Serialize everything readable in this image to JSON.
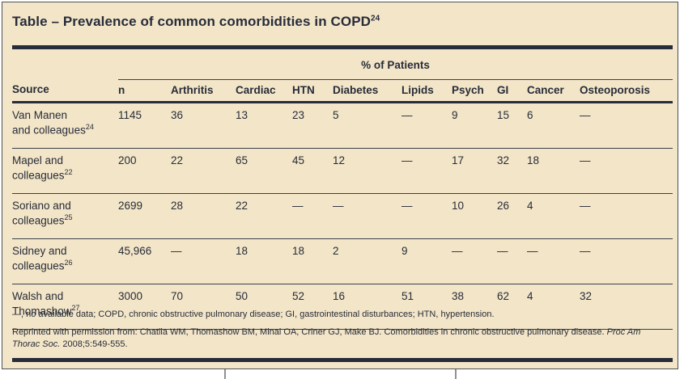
{
  "title": {
    "text": "Table – Prevalence of common comorbidities in COPD",
    "sup": "24"
  },
  "table": {
    "group_header": "% of Patients",
    "columns": [
      "Source",
      "n",
      "Arthritis",
      "Cardiac",
      "HTN",
      "Diabetes",
      "Lipids",
      "Psych",
      "GI",
      "Cancer",
      "Osteoporosis"
    ],
    "rows": [
      {
        "source_line1": "Van Manen",
        "source_line2": "and colleagues",
        "source_sup": "24",
        "values": [
          "1145",
          "36",
          "13",
          "23",
          "5",
          "—",
          "9",
          "15",
          "6",
          "—"
        ]
      },
      {
        "source_line1": "Mapel and",
        "source_line2": "colleagues",
        "source_sup": "22",
        "values": [
          "200",
          "22",
          "65",
          "45",
          "12",
          "—",
          "17",
          "32",
          "18",
          "—"
        ]
      },
      {
        "source_line1": "Soriano and",
        "source_line2": "colleagues",
        "source_sup": "25",
        "values": [
          "2699",
          "28",
          "22",
          "—",
          "—",
          "—",
          "10",
          "26",
          "4",
          "—"
        ]
      },
      {
        "source_line1": "Sidney and",
        "source_line2": "colleagues",
        "source_sup": "26",
        "values": [
          "45,966",
          "—",
          "18",
          "18",
          "2",
          "9",
          "—",
          "—",
          "—",
          "—"
        ]
      },
      {
        "source_line1": "Walsh and",
        "source_line2": "Thomashow",
        "source_sup": "27",
        "values": [
          "3000",
          "70",
          "50",
          "52",
          "16",
          "51",
          "38",
          "62",
          "4",
          "32"
        ]
      }
    ]
  },
  "footnotes": {
    "abbreviations": "—, no available data; COPD, chronic obstructive pulmonary disease; GI, gastrointestinal disturbances; HTN, hypertension.",
    "reprint_text": "Reprinted with permission from: Chatila WM, Thomashow BM, Minai OA, Criner GJ, Make BJ. Comorbidities in chronic obstructive pulmonary disease.",
    "reprint_journal": "Proc Am Thorac Soc.",
    "reprint_tail": "2008;5:549-555."
  },
  "colors": {
    "background": "#f3e5c7",
    "ink": "#272c3a",
    "border": "#4d525b",
    "tick": "#8f9296"
  }
}
